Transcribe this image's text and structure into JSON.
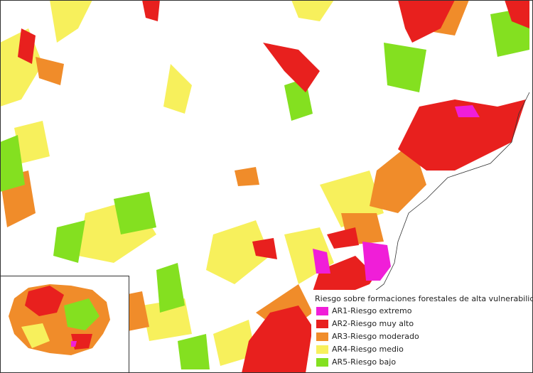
{
  "legend": {
    "title": "Riesgo sobre formaciones forestales de alta vulnerabilidad",
    "items": [
      {
        "label": "AR1-Riesgo extremo",
        "color": "#f01ed8"
      },
      {
        "label": "AR2-Riesgo muy alto",
        "color": "#e8201e"
      },
      {
        "label": "AR3-Riesgo moderado",
        "color": "#f08c2a"
      },
      {
        "label": "AR4-Riesgo medio",
        "color": "#f7f05c"
      },
      {
        "label": "AR5-Riesgo bajo",
        "color": "#84e020"
      }
    ]
  }
}
